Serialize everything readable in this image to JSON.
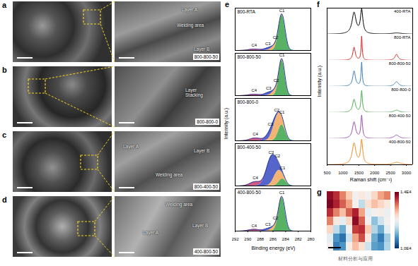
{
  "figure": {
    "sem_panels": [
      {
        "letter": "a",
        "sample": "800-800-50",
        "annotations": [
          "Layer A",
          "Welding area",
          "Layer B"
        ]
      },
      {
        "letter": "b",
        "sample": "800-800-0",
        "annotations": [
          "Layer Stacking"
        ]
      },
      {
        "letter": "c",
        "sample": "800-400-50",
        "annotations": [
          "Layer A",
          "Layer B",
          "Welding area"
        ]
      },
      {
        "letter": "d",
        "sample": "400-800-50",
        "annotations": [
          "Welding area",
          "Layer A",
          "Layer B"
        ]
      }
    ],
    "watermark": "材料分析与应用"
  },
  "chart_data": [
    {
      "type": "area",
      "panel": "e",
      "x_label": "Binding energy (eV)",
      "y_label": "Intensity (a.u.)",
      "xlim": [
        292,
        280
      ],
      "xticks": [
        292,
        290,
        288,
        286,
        284,
        282,
        280
      ],
      "ylim": [
        0,
        1.2
      ],
      "tick_labels": "x",
      "color": "#1f3b9e",
      "series": [
        {
          "name": "C1",
          "color": "#2e9e3f"
        },
        {
          "name": "C2",
          "color": "#f0a050"
        },
        {
          "name": "C3",
          "color": "#2b3fbf"
        },
        {
          "name": "C4",
          "color": "#c0306a"
        }
      ],
      "panels": [
        {
          "name": "800-RTA",
          "peaks": [
            {
              "name": "C1",
              "center": 284.6,
              "height": 1.0,
              "fwhm": 1.2
            },
            {
              "name": "C2",
              "center": 285.6,
              "height": 0.12,
              "fwhm": 1.5
            },
            {
              "name": "C3",
              "center": 286.8,
              "height": 0.06,
              "fwhm": 1.5
            },
            {
              "name": "C4",
              "center": 289.0,
              "height": 0.04,
              "fwhm": 2.0
            }
          ]
        },
        {
          "name": "800-800-50",
          "peaks": [
            {
              "name": "C1",
              "center": 284.6,
              "height": 1.0,
              "fwhm": 1.1
            },
            {
              "name": "C2",
              "center": 285.5,
              "height": 0.15,
              "fwhm": 1.4
            },
            {
              "name": "C3",
              "center": 286.7,
              "height": 0.08,
              "fwhm": 1.5
            },
            {
              "name": "C4",
              "center": 289.0,
              "height": 0.04,
              "fwhm": 2.0
            }
          ]
        },
        {
          "name": "800-800-0",
          "peaks": [
            {
              "name": "C1",
              "center": 284.6,
              "height": 0.45,
              "fwhm": 1.3
            },
            {
              "name": "C2",
              "center": 285.4,
              "height": 0.55,
              "fwhm": 1.5
            },
            {
              "name": "C3",
              "center": 286.4,
              "height": 0.2,
              "fwhm": 1.6
            },
            {
              "name": "C4",
              "center": 288.8,
              "height": 0.08,
              "fwhm": 2.0
            }
          ]
        },
        {
          "name": "800-400-50",
          "peaks": [
            {
              "name": "C1",
              "center": 284.5,
              "height": 0.2,
              "fwhm": 1.3
            },
            {
              "name": "C2",
              "center": 285.3,
              "height": 0.35,
              "fwhm": 1.5
            },
            {
              "name": "C3",
              "center": 286.3,
              "height": 0.75,
              "fwhm": 1.8
            },
            {
              "name": "C4",
              "center": 288.8,
              "height": 0.12,
              "fwhm": 2.0
            }
          ]
        },
        {
          "name": "400-800-50",
          "peaks": [
            {
              "name": "C1",
              "center": 284.6,
              "height": 0.95,
              "fwhm": 1.2
            },
            {
              "name": "C2",
              "center": 285.6,
              "height": 0.12,
              "fwhm": 1.5
            },
            {
              "name": "C3",
              "center": 286.8,
              "height": 0.06,
              "fwhm": 1.5
            },
            {
              "name": "C4",
              "center": 289.0,
              "height": 0.05,
              "fwhm": 2.0
            }
          ]
        }
      ]
    },
    {
      "type": "line",
      "panel": "f",
      "x_label": "Raman shift (cm⁻¹)",
      "y_label": "Intensity (a.u.)",
      "xlim": [
        500,
        3200
      ],
      "xticks": [
        500,
        1000,
        1500,
        2000,
        2500,
        3000
      ],
      "ylim": [
        0,
        1.1
      ],
      "tick_labels": "x",
      "series": [
        {
          "name": "400-RTA",
          "color": "#000000",
          "peaks": [
            {
              "center": 1350,
              "height": 0.9,
              "fwhm": 150
            },
            {
              "center": 1590,
              "height": 1.0,
              "fwhm": 90
            },
            {
              "center": 2700,
              "height": 0.05,
              "fwhm": 400
            }
          ]
        },
        {
          "name": "800-RTA",
          "color": "#d62728",
          "peaks": [
            {
              "center": 1350,
              "height": 0.55,
              "fwhm": 90
            },
            {
              "center": 1590,
              "height": 1.0,
              "fwhm": 40
            },
            {
              "center": 2690,
              "height": 0.25,
              "fwhm": 120
            }
          ]
        },
        {
          "name": "800-800-50",
          "color": "#3a7fb8",
          "peaks": [
            {
              "center": 1350,
              "height": 0.65,
              "fwhm": 100
            },
            {
              "center": 1590,
              "height": 1.0,
              "fwhm": 45
            },
            {
              "center": 2690,
              "height": 0.2,
              "fwhm": 150
            }
          ]
        },
        {
          "name": "800-800-0",
          "color": "#4cae4c",
          "peaks": [
            {
              "center": 1350,
              "height": 0.55,
              "fwhm": 110
            },
            {
              "center": 1590,
              "height": 0.9,
              "fwhm": 55
            },
            {
              "center": 2690,
              "height": 0.1,
              "fwhm": 200
            }
          ]
        },
        {
          "name": "800-400-50",
          "color": "#9b4fb0",
          "peaks": [
            {
              "center": 1350,
              "height": 0.7,
              "fwhm": 120
            },
            {
              "center": 1590,
              "height": 0.95,
              "fwhm": 60
            },
            {
              "center": 2690,
              "height": 0.15,
              "fwhm": 200
            }
          ]
        },
        {
          "name": "400-800-50",
          "color": "#f08a24",
          "peaks": [
            {
              "center": 1350,
              "height": 0.9,
              "fwhm": 140
            },
            {
              "center": 1590,
              "height": 1.0,
              "fwhm": 80
            },
            {
              "center": 2700,
              "height": 0.1,
              "fwhm": 300
            }
          ]
        }
      ]
    },
    {
      "type": "heatmap",
      "panel": "g",
      "tick_labels": false,
      "values": [
        [
          13800,
          13500,
          13000,
          12500,
          12000,
          12200,
          12000,
          12400,
          12800,
          13000
        ],
        [
          13900,
          13600,
          13200,
          12800,
          12000,
          11500,
          12300,
          12600,
          12400,
          12200
        ],
        [
          13500,
          13000,
          12600,
          13200,
          13600,
          12800,
          11800,
          12000,
          12100,
          11900
        ],
        [
          13000,
          12200,
          11800,
          12400,
          13800,
          13200,
          12000,
          11200,
          11600,
          12000
        ],
        [
          12400,
          11500,
          11000,
          12000,
          13400,
          13500,
          12500,
          11400,
          11000,
          11800
        ],
        [
          11800,
          10800,
          10500,
          11600,
          12800,
          13300,
          12200,
          11000,
          10600,
          11300
        ],
        [
          12000,
          10600,
          10800,
          12100,
          12600,
          12300,
          11600,
          10900,
          10800,
          11400
        ]
      ],
      "colorbar": {
        "range": [
          10000,
          14000
        ],
        "ticks": [
          {
            "value": 14000,
            "label": "1.4E4"
          },
          {
            "value": 10000,
            "label": "1.0E4"
          }
        ]
      }
    }
  ]
}
